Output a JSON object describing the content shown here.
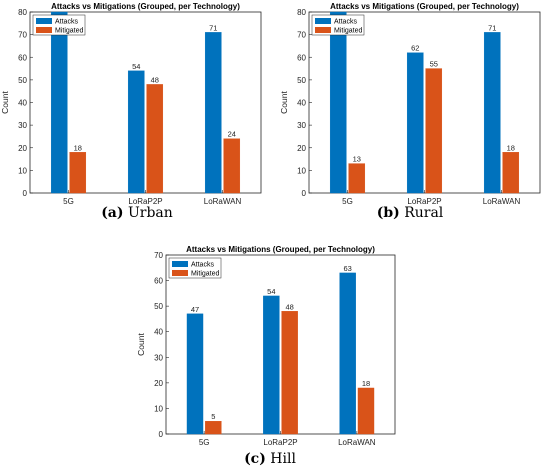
{
  "chart_data": [
    {
      "type": "bar",
      "title": "Attacks vs Mitigations (Grouped, per Technology)",
      "ylabel": "Count",
      "ylim": [
        0,
        80
      ],
      "yticks": [
        0,
        10,
        20,
        30,
        40,
        50,
        60,
        70,
        80
      ],
      "categories": [
        "5G",
        "LoRaP2P",
        "LoRaWAN"
      ],
      "series": [
        {
          "name": "Attacks",
          "color": "#0072BD",
          "values": [
            80,
            54,
            71
          ],
          "labels": [
            "",
            "54",
            "71"
          ]
        },
        {
          "name": "Mitigated",
          "color": "#D95319",
          "values": [
            18,
            48,
            24
          ],
          "labels": [
            "18",
            "48",
            "24"
          ]
        }
      ],
      "legend": "top-left",
      "caption_letter": "(a)",
      "caption_text": "Urban"
    },
    {
      "type": "bar",
      "title": "Attacks vs Mitigations (Grouped, per Technology)",
      "ylabel": "Count",
      "ylim": [
        0,
        80
      ],
      "yticks": [
        0,
        10,
        20,
        30,
        40,
        50,
        60,
        70,
        80
      ],
      "categories": [
        "5G",
        "LoRaP2P",
        "LoRaWAN"
      ],
      "series": [
        {
          "name": "Attacks",
          "color": "#0072BD",
          "values": [
            80,
            62,
            71
          ],
          "labels": [
            "",
            "62",
            "71"
          ]
        },
        {
          "name": "Mitigated",
          "color": "#D95319",
          "values": [
            13,
            55,
            18
          ],
          "labels": [
            "13",
            "55",
            "18"
          ]
        }
      ],
      "legend": "top-left",
      "caption_letter": "(b)",
      "caption_text": "Rural"
    },
    {
      "type": "bar",
      "title": "Attacks vs Mitigations (Grouped, per Technology)",
      "ylabel": "Count",
      "ylim": [
        0,
        70
      ],
      "yticks": [
        0,
        10,
        20,
        30,
        40,
        50,
        60,
        70
      ],
      "categories": [
        "5G",
        "LoRaP2P",
        "LoRaWAN"
      ],
      "series": [
        {
          "name": "Attacks",
          "color": "#0072BD",
          "values": [
            47,
            54,
            63
          ],
          "labels": [
            "47",
            "54",
            "63"
          ]
        },
        {
          "name": "Mitigated",
          "color": "#D95319",
          "values": [
            5,
            48,
            18
          ],
          "labels": [
            "5",
            "48",
            "18"
          ]
        }
      ],
      "legend": "top-left",
      "caption_letter": "(c)",
      "caption_text": "Hill"
    }
  ]
}
